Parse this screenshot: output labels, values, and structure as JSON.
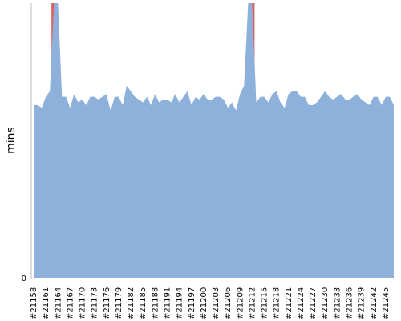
{
  "chart_data": {
    "type": "area",
    "title": "",
    "xlabel": "",
    "ylabel": "mins",
    "ylim": [
      0,
      100
    ],
    "y_ticks": [
      {
        "value": 0,
        "label": "0"
      }
    ],
    "grid": false,
    "legend": "none",
    "area_color": "#8eb1db",
    "highlight_color": "#e05a5a",
    "x_ticks": [
      "#21158",
      "#21161",
      "#21164",
      "#21167",
      "#21170",
      "#21173",
      "#21176",
      "#21179",
      "#21182",
      "#21185",
      "#21188",
      "#21191",
      "#21194",
      "#21197",
      "#21200",
      "#21203",
      "#21206",
      "#21209",
      "#21212",
      "#21215",
      "#21218",
      "#21221",
      "#21224",
      "#21227",
      "#21230",
      "#21233",
      "#21236",
      "#21239",
      "#21242",
      "#21245"
    ],
    "highlights": [
      "#21163",
      "#21212"
    ],
    "x": [
      "#21158",
      "#21159",
      "#21160",
      "#21161",
      "#21162",
      "#21163",
      "#21164",
      "#21165",
      "#21166",
      "#21167",
      "#21168",
      "#21169",
      "#21170",
      "#21171",
      "#21172",
      "#21173",
      "#21174",
      "#21175",
      "#21176",
      "#21177",
      "#21178",
      "#21179",
      "#21180",
      "#21181",
      "#21182",
      "#21183",
      "#21184",
      "#21185",
      "#21186",
      "#21187",
      "#21188",
      "#21189",
      "#21190",
      "#21191",
      "#21192",
      "#21193",
      "#21194",
      "#21195",
      "#21196",
      "#21197",
      "#21198",
      "#21199",
      "#21200",
      "#21201",
      "#21202",
      "#21203",
      "#21204",
      "#21205",
      "#21206",
      "#21207",
      "#21208",
      "#21209",
      "#21210",
      "#21211",
      "#21212",
      "#21213",
      "#21214",
      "#21215",
      "#21216",
      "#21217",
      "#21218",
      "#21219",
      "#21220",
      "#21221",
      "#21222",
      "#21223",
      "#21224",
      "#21225",
      "#21226",
      "#21227",
      "#21228",
      "#21229",
      "#21230",
      "#21231",
      "#21232",
      "#21233",
      "#21234",
      "#21235",
      "#21236",
      "#21237",
      "#21238",
      "#21239",
      "#21240",
      "#21241",
      "#21242",
      "#21243",
      "#21244",
      "#21245",
      "#21246",
      "#21247"
    ],
    "values": [
      63,
      63,
      62,
      66,
      68,
      100,
      100,
      66,
      66,
      62,
      67,
      64,
      65,
      63,
      66,
      66,
      65,
      66,
      67,
      61,
      66,
      66,
      63,
      70,
      68,
      66,
      65,
      64,
      66,
      63,
      67,
      64,
      65,
      65,
      64,
      67,
      64,
      66,
      68,
      63,
      66,
      65,
      67,
      65,
      65,
      66,
      66,
      65,
      62,
      64,
      61,
      67,
      70,
      100,
      100,
      64,
      66,
      66,
      64,
      67,
      68,
      64,
      62,
      67,
      68,
      68,
      66,
      66,
      63,
      63,
      64,
      66,
      68,
      66,
      65,
      66,
      67,
      65,
      65,
      66,
      67,
      65,
      64,
      63,
      66,
      66,
      63,
      66,
      66,
      63
    ]
  }
}
